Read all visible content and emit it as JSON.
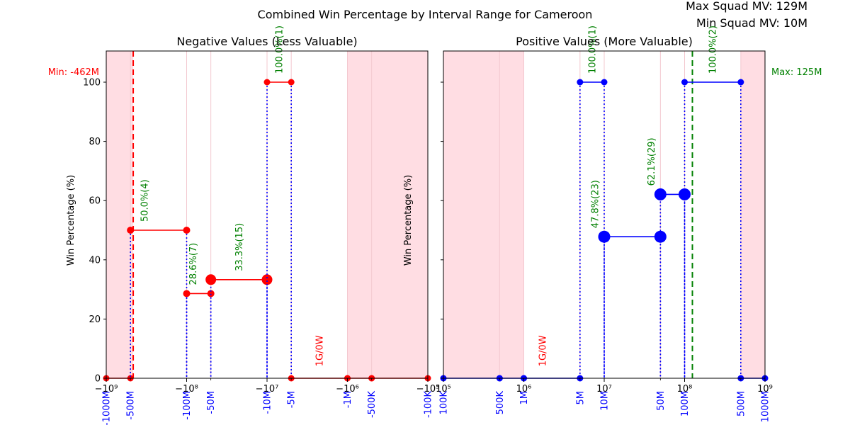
{
  "figure": {
    "title": "Combined Win Percentage by Interval Range for Cameroon",
    "max_squad_mv": "Max Squad MV: 129M",
    "min_squad_mv": "Min Squad MV: 10M"
  },
  "colors": {
    "negative": "#ff0000",
    "positive": "#0000ff",
    "annotation": "#008000",
    "shade": "#ffdde3",
    "tick_label": "#0000ff"
  },
  "chart_data": [
    {
      "type": "line",
      "title": "Negative Values (Less Valuable)",
      "xlabel": "",
      "ylabel": "Win Percentage (%)",
      "xscale": "symlog-negative",
      "xlim": [
        -1000000000,
        -100000
      ],
      "ylim": [
        0,
        100
      ],
      "yticks": [
        0,
        20,
        40,
        60,
        80,
        100
      ],
      "major_ticks": [
        {
          "value": -1000000000,
          "label": "−10⁹"
        },
        {
          "value": -100000000,
          "label": "−10⁸"
        },
        {
          "value": -10000000,
          "label": "−10⁷"
        },
        {
          "value": -1000000,
          "label": "−10⁶"
        },
        {
          "value": -100000,
          "label": "−10⁵"
        }
      ],
      "interval_ticks": [
        {
          "value": -1000000000,
          "label": "-1000M"
        },
        {
          "value": -500000000,
          "label": "-500M"
        },
        {
          "value": -100000000,
          "label": "-100M"
        },
        {
          "value": -50000000,
          "label": "-50M"
        },
        {
          "value": -10000000,
          "label": "-10M"
        },
        {
          "value": -5000000,
          "label": "-5M"
        },
        {
          "value": -1000000,
          "label": "-1M"
        },
        {
          "value": -500000,
          "label": "-500K"
        },
        {
          "value": -100000,
          "label": "-100K"
        }
      ],
      "shaded_regions": [
        [
          -1000000000,
          -462000000
        ],
        [
          -1000000,
          -100000
        ]
      ],
      "reference_line": {
        "value": -462000000,
        "label": "Min: -462M"
      },
      "steps": [
        {
          "x0": -1000000000,
          "x1": -500000000,
          "y": 0,
          "games": 0,
          "label": ""
        },
        {
          "x0": -500000000,
          "x1": -100000000,
          "y": 50.0,
          "games": 4,
          "label": "50.0%(4)"
        },
        {
          "x0": -100000000,
          "x1": -50000000,
          "y": 28.6,
          "games": 7,
          "label": "28.6%(7)"
        },
        {
          "x0": -50000000,
          "x1": -10000000,
          "y": 33.3,
          "games": 15,
          "label": "33.3%(15)"
        },
        {
          "x0": -10000000,
          "x1": -5000000,
          "y": 100.0,
          "games": 1,
          "label": "100.0%(1)"
        },
        {
          "x0": -5000000,
          "x1": -1000000,
          "y": 0,
          "games": 1,
          "label": "1G/0W"
        },
        {
          "x0": -1000000,
          "x1": -500000,
          "y": 0,
          "games": 0,
          "label": ""
        },
        {
          "x0": -500000,
          "x1": -100000,
          "y": 0,
          "games": 0,
          "label": ""
        }
      ]
    },
    {
      "type": "line",
      "title": "Positive Values (More Valuable)",
      "xlabel": "",
      "ylabel": "Win Percentage (%)",
      "xscale": "log",
      "xlim": [
        100000,
        1000000000
      ],
      "ylim": [
        0,
        100
      ],
      "yticks": [
        0,
        20,
        40,
        60,
        80,
        100
      ],
      "major_ticks": [
        {
          "value": 100000,
          "label": "10⁵"
        },
        {
          "value": 1000000,
          "label": "10⁶"
        },
        {
          "value": 10000000,
          "label": "10⁷"
        },
        {
          "value": 100000000,
          "label": "10⁸"
        },
        {
          "value": 1000000000,
          "label": "10⁹"
        }
      ],
      "interval_ticks": [
        {
          "value": 100000,
          "label": "100K"
        },
        {
          "value": 500000,
          "label": "500K"
        },
        {
          "value": 1000000,
          "label": "1M"
        },
        {
          "value": 5000000,
          "label": "5M"
        },
        {
          "value": 10000000,
          "label": "10M"
        },
        {
          "value": 50000000,
          "label": "50M"
        },
        {
          "value": 100000000,
          "label": "100M"
        },
        {
          "value": 500000000,
          "label": "500M"
        },
        {
          "value": 1000000000,
          "label": "1000M"
        }
      ],
      "shaded_regions": [
        [
          100000,
          1000000
        ],
        [
          500000000,
          1000000000
        ]
      ],
      "reference_line": {
        "value": 125000000,
        "label": "Max: 125M"
      },
      "steps": [
        {
          "x0": 100000,
          "x1": 500000,
          "y": 0,
          "games": 0,
          "label": ""
        },
        {
          "x0": 500000,
          "x1": 1000000,
          "y": 0,
          "games": 0,
          "label": ""
        },
        {
          "x0": 1000000,
          "x1": 5000000,
          "y": 0,
          "games": 1,
          "label": "1G/0W"
        },
        {
          "x0": 5000000,
          "x1": 10000000,
          "y": 100.0,
          "games": 1,
          "label": "100.0%(1)"
        },
        {
          "x0": 10000000,
          "x1": 50000000,
          "y": 47.8,
          "games": 23,
          "label": "47.8%(23)"
        },
        {
          "x0": 50000000,
          "x1": 100000000,
          "y": 62.1,
          "games": 29,
          "label": "62.1%(29)"
        },
        {
          "x0": 100000000,
          "x1": 500000000,
          "y": 100.0,
          "games": 2,
          "label": "100.0%(2)"
        },
        {
          "x0": 500000000,
          "x1": 1000000000,
          "y": 0,
          "games": 0,
          "label": ""
        }
      ]
    }
  ]
}
